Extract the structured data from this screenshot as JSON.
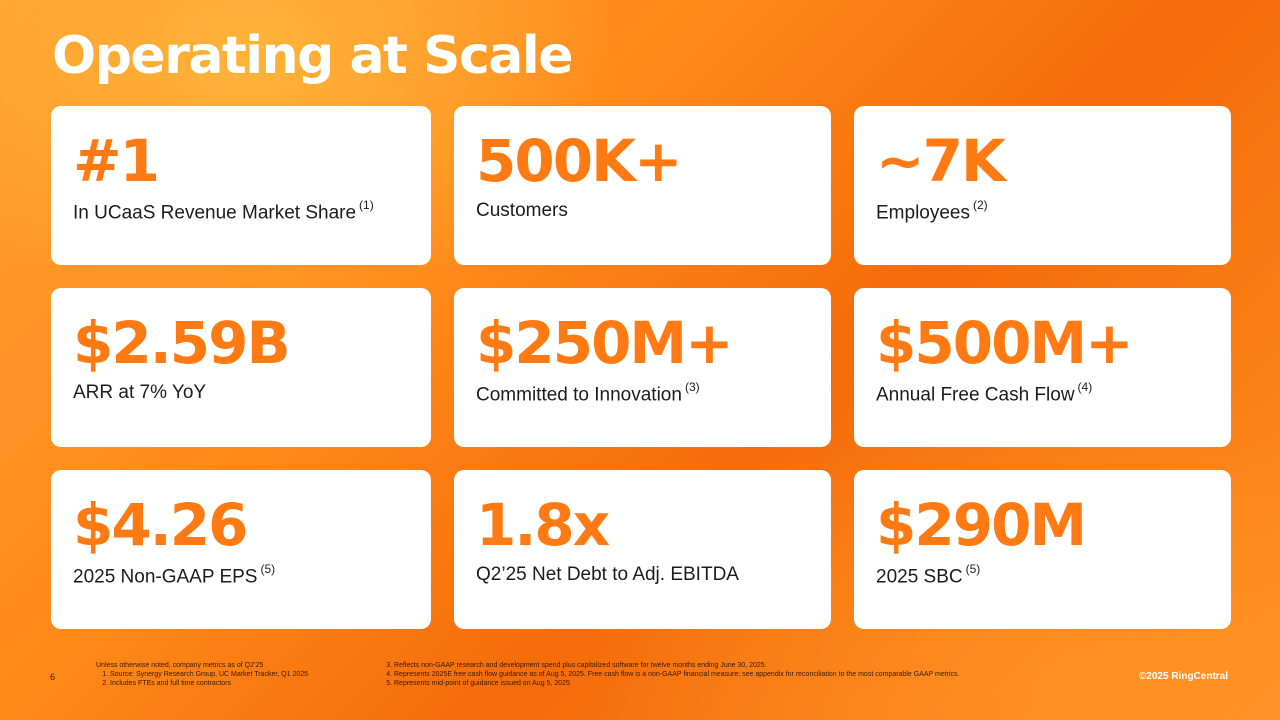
{
  "title": "Operating at Scale",
  "cards": [
    {
      "value": "#1",
      "label": "In UCaaS Revenue Market Share",
      "note": "(1)"
    },
    {
      "value": "500K+",
      "label": "Customers",
      "note": ""
    },
    {
      "value": "~7K",
      "label": "Employees",
      "note": "(2)"
    },
    {
      "value": "$2.59B",
      "label": "ARR at 7% YoY",
      "note": ""
    },
    {
      "value": "$250M+",
      "label": "Committed to Innovation",
      "note": "(3)"
    },
    {
      "value": "$500M+",
      "label": "Annual Free Cash Flow",
      "note": "(4)"
    },
    {
      "value": "$4.26",
      "label": "2025 Non-GAAP EPS",
      "note": "(5)"
    },
    {
      "value": "1.8x",
      "label": "Q2’25 Net Debt to Adj. EBITDA",
      "note": ""
    },
    {
      "value": "$290M",
      "label": "2025 SBC",
      "note": "(5)"
    }
  ],
  "footer": {
    "page_number": "6",
    "intro": "Unless otherwise noted, company metrics as of Q2’25",
    "notes_left": [
      "Source: Synergy Research Group, UC Market Tracker, Q1 2025",
      "Includes FTEs and full time contractors"
    ],
    "notes_right": [
      "Reflects non-GAAP research and development spend plus capitalized software for twelve months ending June 30, 2025.",
      "Represents 2025E free cash flow guidance as of Aug 5, 2025. Free cash flow is a non-GAAP financial measure; see appendix for reconciliation to the most comparable GAAP metrics.",
      "Represents mid-point of guidance issued on Aug 5, 2025"
    ],
    "copyright": "©2025 RingCentral"
  }
}
